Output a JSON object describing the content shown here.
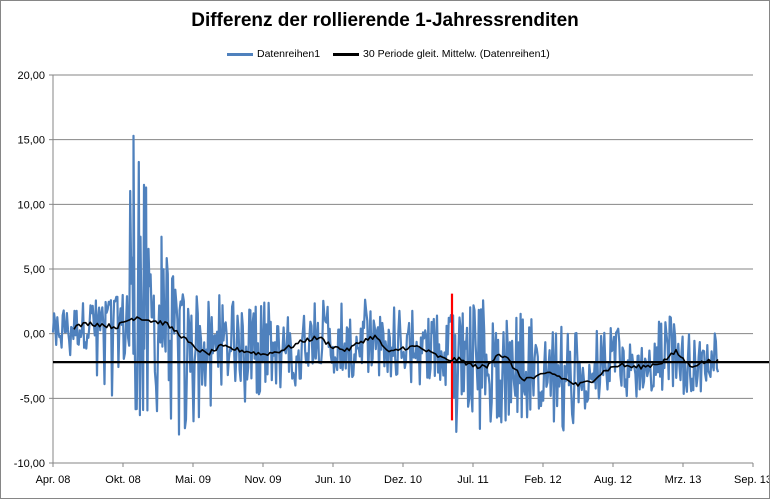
{
  "chart_data": {
    "type": "line",
    "title": "Differenz der rollierende 1-Jahressrenditen",
    "xlabel": "",
    "ylabel": "",
    "ylim": [
      -10,
      20
    ],
    "y_ticks": [
      "20,00",
      "15,00",
      "10,00",
      "5,00",
      "0,00",
      "-5,00",
      "-10,00"
    ],
    "y_tick_values": [
      20,
      15,
      10,
      5,
      0,
      -5,
      -10
    ],
    "x_ticks": [
      "Apr. 08",
      "Okt. 08",
      "Mai. 09",
      "Nov. 09",
      "Jun. 10",
      "Dez. 10",
      "Jul. 11",
      "Feb. 12",
      "Aug. 12",
      "Mrz. 13",
      "Sep. 13"
    ],
    "x_range_index": [
      0,
      10
    ],
    "gridlines": true,
    "legend": [
      "Datenreihen1",
      "30 Periode gleit. Mittelw. (Datenreihen1)"
    ],
    "series": [
      {
        "name": "Datenreihen1",
        "color": "#4f81bd",
        "note": "daily series approximated by envelope control points",
        "upper": [
          [
            0,
            1.5
          ],
          [
            0.3,
            2.8
          ],
          [
            0.7,
            2.5
          ],
          [
            1.0,
            3.0
          ],
          [
            1.15,
            15.3
          ],
          [
            1.3,
            11.5
          ],
          [
            1.55,
            7.5
          ],
          [
            1.8,
            3.0
          ],
          [
            2.3,
            3.3
          ],
          [
            2.8,
            2.0
          ],
          [
            3.3,
            3.0
          ],
          [
            3.8,
            2.6
          ],
          [
            4.3,
            3.0
          ],
          [
            4.8,
            2.6
          ],
          [
            5.3,
            1.5
          ],
          [
            5.8,
            1.7
          ],
          [
            6.3,
            3.0
          ],
          [
            6.8,
            1.2
          ],
          [
            7.3,
            0.5
          ],
          [
            7.8,
            0.5
          ],
          [
            8.3,
            0.5
          ],
          [
            8.8,
            1.4
          ],
          [
            9.2,
            0.4
          ],
          [
            9.5,
            0.0
          ]
        ],
        "lower": [
          [
            0,
            -1.5
          ],
          [
            0.3,
            -2.0
          ],
          [
            0.7,
            -4.0
          ],
          [
            1.0,
            -7.0
          ],
          [
            1.2,
            -6.5
          ],
          [
            1.4,
            -6.0
          ],
          [
            1.8,
            -7.8
          ],
          [
            2.3,
            -5.5
          ],
          [
            2.8,
            -5.3
          ],
          [
            3.3,
            -4.5
          ],
          [
            3.8,
            -3.0
          ],
          [
            4.3,
            -3.5
          ],
          [
            4.8,
            -3.5
          ],
          [
            5.3,
            -4.0
          ],
          [
            5.8,
            -8.5
          ],
          [
            6.3,
            -7.0
          ],
          [
            6.8,
            -6.5
          ],
          [
            7.3,
            -8.0
          ],
          [
            7.8,
            -5.0
          ],
          [
            8.3,
            -5.0
          ],
          [
            8.8,
            -4.5
          ],
          [
            9.2,
            -5.2
          ],
          [
            9.5,
            -3.0
          ]
        ]
      },
      {
        "name": "30 Periode gleit. Mittelw. (Datenreihen1)",
        "color": "#000000",
        "points": [
          [
            0.3,
            0.5
          ],
          [
            0.5,
            0.8
          ],
          [
            0.7,
            0.7
          ],
          [
            0.9,
            0.5
          ],
          [
            1.05,
            1.0
          ],
          [
            1.2,
            1.3
          ],
          [
            1.4,
            1.0
          ],
          [
            1.6,
            0.8
          ],
          [
            1.8,
            0.0
          ],
          [
            2.0,
            -1.0
          ],
          [
            2.2,
            -1.6
          ],
          [
            2.4,
            -1.0
          ],
          [
            2.6,
            -1.2
          ],
          [
            2.8,
            -1.4
          ],
          [
            3.0,
            -1.6
          ],
          [
            3.2,
            -1.4
          ],
          [
            3.4,
            -1.0
          ],
          [
            3.6,
            -0.5
          ],
          [
            3.8,
            -0.3
          ],
          [
            4.0,
            -1.0
          ],
          [
            4.2,
            -1.3
          ],
          [
            4.4,
            -0.6
          ],
          [
            4.6,
            -0.2
          ],
          [
            4.8,
            -1.5
          ],
          [
            5.0,
            -1.1
          ],
          [
            5.2,
            -1.0
          ],
          [
            5.4,
            -1.5
          ],
          [
            5.6,
            -2.0
          ],
          [
            5.8,
            -2.0
          ],
          [
            6.0,
            -2.5
          ],
          [
            6.2,
            -2.6
          ],
          [
            6.35,
            -1.5
          ],
          [
            6.5,
            -2.0
          ],
          [
            6.7,
            -3.5
          ],
          [
            6.9,
            -3.4
          ],
          [
            7.1,
            -3.0
          ],
          [
            7.3,
            -3.5
          ],
          [
            7.5,
            -4.0
          ],
          [
            7.7,
            -3.6
          ],
          [
            7.9,
            -2.8
          ],
          [
            8.1,
            -2.4
          ],
          [
            8.3,
            -2.6
          ],
          [
            8.5,
            -2.5
          ],
          [
            8.7,
            -2.2
          ],
          [
            8.9,
            -1.4
          ],
          [
            9.1,
            -2.5
          ],
          [
            9.3,
            -2.2
          ],
          [
            9.5,
            -2.0
          ]
        ]
      }
    ],
    "reference_lines": [
      {
        "orientation": "horizontal",
        "value": -2.2,
        "color": "#000000"
      },
      {
        "orientation": "vertical",
        "x_index": 5.7,
        "y_range": [
          -6.7,
          3.1
        ],
        "color": "#ff0000"
      }
    ]
  }
}
